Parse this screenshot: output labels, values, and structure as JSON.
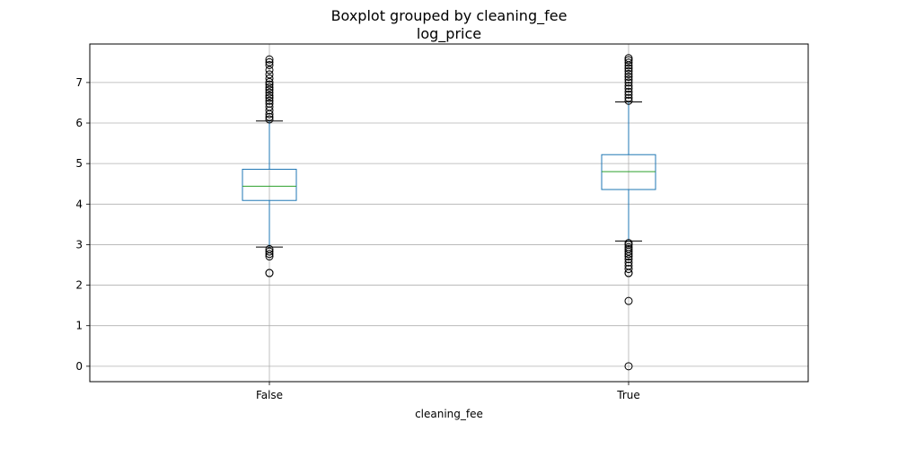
{
  "chart_data": {
    "type": "boxplot",
    "suptitle": "Boxplot grouped by cleaning_fee",
    "title": "log_price",
    "xlabel": "cleaning_fee",
    "ylabel": "",
    "categories": [
      "False",
      "True"
    ],
    "ylim": [
      -0.38,
      7.95
    ],
    "yticks": [
      0,
      1,
      2,
      3,
      4,
      5,
      6,
      7
    ],
    "grid": true,
    "colors": {
      "box": "#1f77b4",
      "median": "#2ca02c",
      "caps": "#000000",
      "grid": "#b0b0b0"
    },
    "boxes": [
      {
        "category": "False",
        "whisker_low": 2.94,
        "q1": 4.09,
        "median": 4.44,
        "q3": 4.86,
        "whisker_high": 6.05,
        "outliers": [
          2.3,
          2.3,
          2.71,
          2.77,
          2.83,
          2.89,
          6.09,
          6.15,
          6.22,
          6.31,
          6.4,
          6.48,
          6.55,
          6.62,
          6.68,
          6.75,
          6.82,
          6.88,
          6.95,
          7.01,
          7.1,
          7.2,
          7.31,
          7.43,
          7.5,
          7.57
        ]
      },
      {
        "category": "True",
        "whisker_low": 3.09,
        "q1": 4.36,
        "median": 4.8,
        "q3": 5.22,
        "whisker_high": 6.52,
        "outliers": [
          0.0,
          1.61,
          2.3,
          2.3,
          2.4,
          2.48,
          2.56,
          2.64,
          2.71,
          2.77,
          2.83,
          2.89,
          2.94,
          3.0,
          3.04,
          6.55,
          6.62,
          6.7,
          6.77,
          6.85,
          6.92,
          7.0,
          7.07,
          7.14,
          7.21,
          7.28,
          7.35,
          7.42,
          7.49,
          7.55,
          7.6
        ]
      }
    ]
  }
}
